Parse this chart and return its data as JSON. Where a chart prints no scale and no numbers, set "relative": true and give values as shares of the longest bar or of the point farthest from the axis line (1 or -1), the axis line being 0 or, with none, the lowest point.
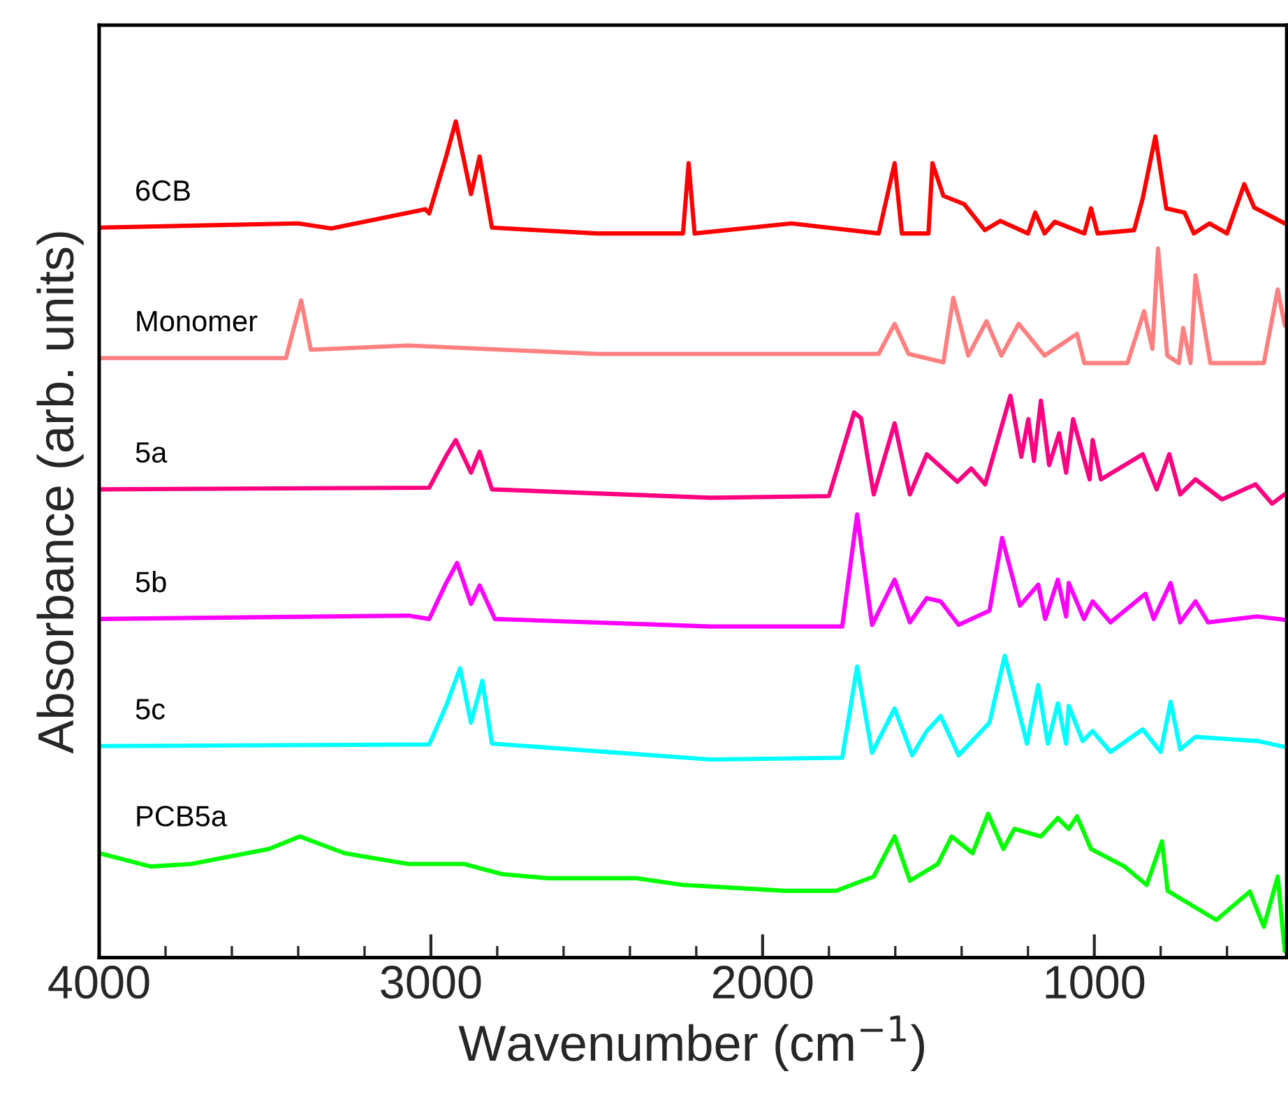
{
  "chart_data": {
    "type": "line",
    "relative": true,
    "xlabel": "Wavenumber (cm$^{−1}$)",
    "ylabel": "Absorbance (arb. units)",
    "xlim": [
      4000,
      420
    ],
    "xticks": [
      4000,
      {
        "value": 3800,
        "label": null
      },
      {
        "value": 3600,
        "label": null
      },
      {
        "value": 3400,
        "label": null
      },
      {
        "value": 3200,
        "label": null
      },
      3000,
      {
        "value": 2800,
        "label": null
      },
      {
        "value": 2600,
        "label": null
      },
      {
        "value": 2400,
        "label": null
      },
      {
        "value": 2200,
        "label": null
      },
      2000,
      {
        "value": 1800,
        "label": null
      },
      {
        "value": 1600,
        "label": null
      },
      {
        "value": 1400,
        "label": null
      },
      {
        "value": 1200,
        "label": null
      },
      1000,
      {
        "value": 800,
        "label": null
      },
      {
        "value": 600,
        "label": null
      }
    ],
    "grid": false,
    "legend": false,
    "marker": "none",
    "line_style": "solid",
    "series": [
      {
        "name": "6CB",
        "color": "#ff0000",
        "x": [
          4000,
          3400,
          3300,
          3017,
          3005,
          2954,
          2925,
          2879,
          2853,
          2816,
          2500,
          2240,
          2223,
          2205,
          1913,
          1650,
          1602,
          1580,
          1500,
          1488,
          1455,
          1392,
          1330,
          1283,
          1200,
          1178,
          1150,
          1119,
          1030,
          1010,
          990,
          880,
          854,
          816,
          783,
          728,
          700,
          653,
          600,
          548,
          518,
          464,
          426
        ],
        "values": [
          0.873,
          0.878,
          0.872,
          0.895,
          0.89,
          0.958,
          1.0,
          0.913,
          0.958,
          0.873,
          0.866,
          0.866,
          0.95,
          0.866,
          0.878,
          0.866,
          0.95,
          0.866,
          0.866,
          0.95,
          0.911,
          0.901,
          0.87,
          0.881,
          0.866,
          0.891,
          0.866,
          0.88,
          0.866,
          0.896,
          0.866,
          0.87,
          0.908,
          0.982,
          0.896,
          0.891,
          0.866,
          0.878,
          0.866,
          0.925,
          0.897,
          0.886,
          0.878
        ]
      },
      {
        "name": "Monomer",
        "color": "#ff8080",
        "x": [
          4000,
          3437,
          3391,
          3362,
          3068,
          2500,
          1650,
          1602,
          1560,
          1455,
          1425,
          1380,
          1325,
          1280,
          1228,
          1150,
          1052,
          1030,
          900,
          850,
          825,
          808,
          780,
          745,
          732,
          710,
          695,
          650,
          489,
          447,
          426
        ],
        "values": [
          0.717,
          0.717,
          0.786,
          0.727,
          0.732,
          0.722,
          0.722,
          0.758,
          0.722,
          0.712,
          0.789,
          0.72,
          0.761,
          0.72,
          0.758,
          0.72,
          0.746,
          0.711,
          0.711,
          0.773,
          0.728,
          0.848,
          0.72,
          0.711,
          0.753,
          0.711,
          0.816,
          0.711,
          0.711,
          0.799,
          0.756
        ]
      },
      {
        "name": "5a",
        "color": "#ff0080",
        "x": [
          4000,
          3005,
          2954,
          2925,
          2879,
          2853,
          2816,
          2156,
          1800,
          1724,
          1703,
          1665,
          1602,
          1556,
          1505,
          1413,
          1371,
          1329,
          1253,
          1220,
          1199,
          1182,
          1161,
          1136,
          1106,
          1085,
          1064,
          1014,
          1005,
          980,
          854,
          812,
          774,
          741,
          695,
          615,
          514,
          464,
          426
        ],
        "values": [
          0.56,
          0.562,
          0.6,
          0.619,
          0.58,
          0.605,
          0.56,
          0.55,
          0.552,
          0.652,
          0.645,
          0.554,
          0.639,
          0.554,
          0.602,
          0.569,
          0.585,
          0.566,
          0.672,
          0.599,
          0.644,
          0.594,
          0.666,
          0.589,
          0.627,
          0.58,
          0.644,
          0.572,
          0.619,
          0.572,
          0.602,
          0.56,
          0.602,
          0.554,
          0.572,
          0.548,
          0.566,
          0.543,
          0.554
        ]
      },
      {
        "name": "5b",
        "color": "#ff00ff",
        "x": [
          4000,
          3068,
          3005,
          2954,
          2921,
          2879,
          2853,
          2807,
          2156,
          1760,
          1715,
          1670,
          1602,
          1556,
          1505,
          1463,
          1409,
          1316,
          1278,
          1224,
          1169,
          1148,
          1110,
          1085,
          1077,
          1031,
          1005,
          951,
          846,
          821,
          770,
          741,
          695,
          657,
          510,
          426
        ],
        "values": [
          0.405,
          0.409,
          0.405,
          0.448,
          0.472,
          0.423,
          0.445,
          0.405,
          0.396,
          0.396,
          0.53,
          0.398,
          0.452,
          0.401,
          0.43,
          0.426,
          0.398,
          0.415,
          0.502,
          0.421,
          0.446,
          0.405,
          0.452,
          0.408,
          0.448,
          0.405,
          0.426,
          0.401,
          0.435,
          0.405,
          0.448,
          0.401,
          0.426,
          0.401,
          0.408,
          0.404
        ]
      },
      {
        "name": "5c",
        "color": "#00ffff",
        "x": [
          4000,
          3005,
          2954,
          2912,
          2879,
          2845,
          2816,
          2156,
          1760,
          1715,
          1670,
          1602,
          1549,
          1505,
          1463,
          1409,
          1316,
          1270,
          1203,
          1169,
          1140,
          1110,
          1085,
          1077,
          1035,
          1005,
          951,
          854,
          800,
          770,
          741,
          695,
          506,
          426
        ],
        "values": [
          0.253,
          0.255,
          0.301,
          0.346,
          0.281,
          0.331,
          0.256,
          0.237,
          0.239,
          0.348,
          0.245,
          0.298,
          0.242,
          0.271,
          0.289,
          0.242,
          0.281,
          0.361,
          0.256,
          0.326,
          0.256,
          0.304,
          0.256,
          0.301,
          0.259,
          0.271,
          0.246,
          0.273,
          0.246,
          0.306,
          0.249,
          0.264,
          0.259,
          0.252
        ]
      },
      {
        "name": "PCB5a",
        "color": "#00ff00",
        "x": [
          4000,
          3845,
          3723,
          3488,
          3395,
          3261,
          3068,
          2900,
          2786,
          2648,
          2379,
          2240,
          1934,
          1778,
          1665,
          1602,
          1556,
          1472,
          1430,
          1367,
          1320,
          1274,
          1241,
          1161,
          1110,
          1077,
          1052,
          1010,
          909,
          842,
          796,
          779,
          632,
          531,
          489,
          447,
          426
        ],
        "values": [
          0.125,
          0.109,
          0.112,
          0.13,
          0.145,
          0.125,
          0.112,
          0.112,
          0.1,
          0.095,
          0.095,
          0.087,
          0.08,
          0.08,
          0.097,
          0.145,
          0.092,
          0.112,
          0.145,
          0.125,
          0.172,
          0.13,
          0.154,
          0.145,
          0.167,
          0.154,
          0.169,
          0.13,
          0.109,
          0.087,
          0.139,
          0.08,
          0.045,
          0.079,
          0.037,
          0.097,
          0.008
        ]
      }
    ]
  }
}
